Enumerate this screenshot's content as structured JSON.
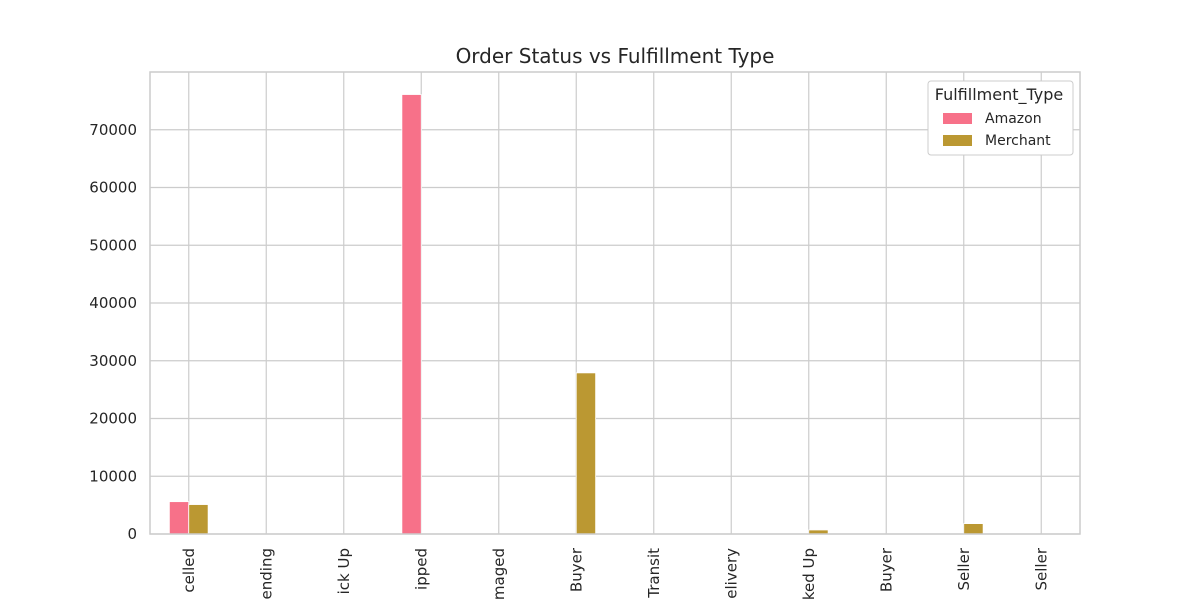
{
  "chart_data": {
    "type": "bar",
    "title": "Order Status vs Fulfillment Type",
    "xlabel": "",
    "ylabel": "",
    "categories": [
      "celled",
      "ending",
      "ick Up",
      "ipped",
      "maged",
      "Buyer",
      "Transit",
      "elivery",
      "ked Up",
      "Buyer",
      "Seller",
      "Seller"
    ],
    "series": [
      {
        "name": "Amazon",
        "color": "#f77189",
        "values": [
          5600,
          0,
          0,
          76100,
          0,
          0,
          0,
          0,
          0,
          0,
          0,
          0
        ]
      },
      {
        "name": "Merchant",
        "color": "#bb9832",
        "values": [
          5100,
          0,
          0,
          0,
          0,
          27900,
          0,
          0,
          700,
          0,
          1800,
          0
        ]
      }
    ],
    "ylim": [
      0,
      80000
    ],
    "yticks": [
      0,
      10000,
      20000,
      30000,
      40000,
      50000,
      60000,
      70000
    ],
    "grid": true,
    "legend": {
      "title": "Fulfillment_Type",
      "placement": "top-right"
    }
  }
}
